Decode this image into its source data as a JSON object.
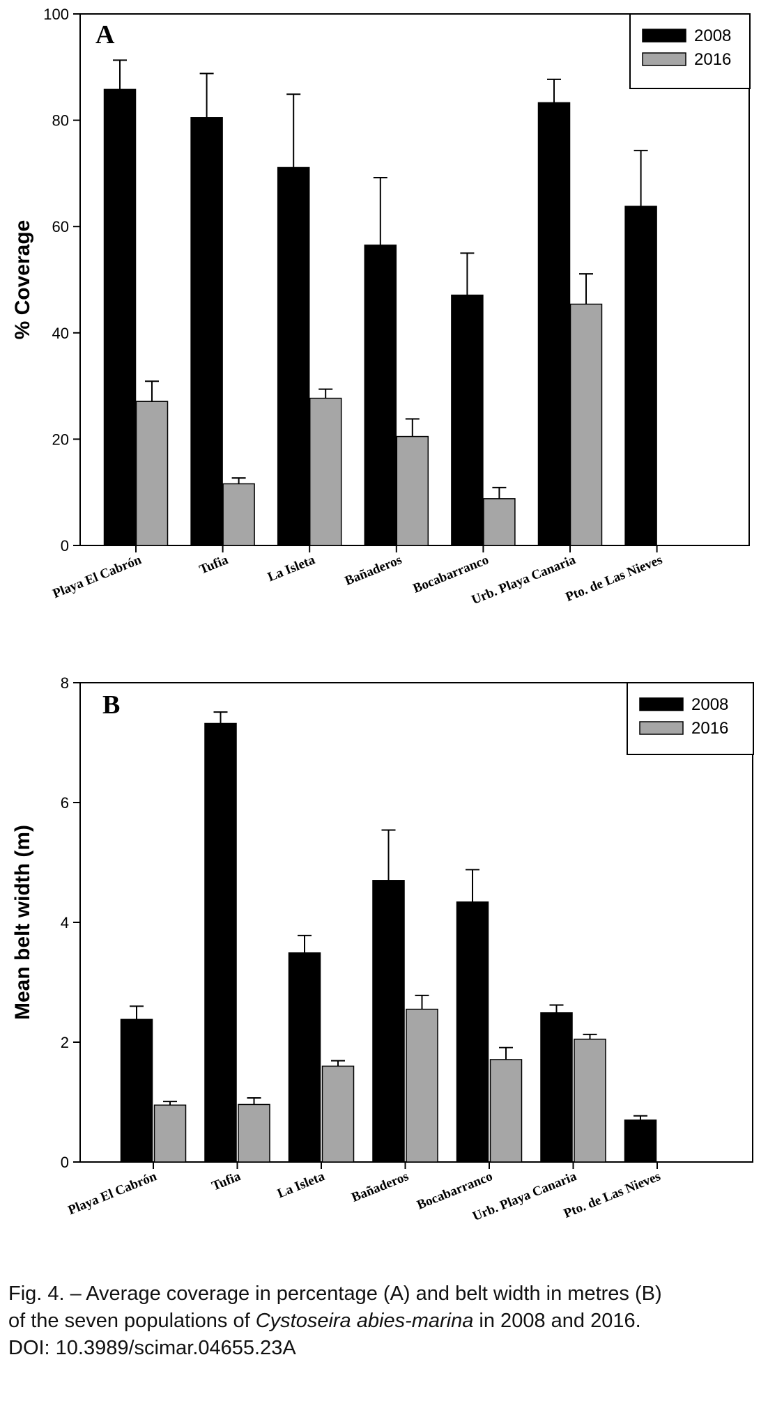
{
  "caption": {
    "line1": "Fig. 4. – Average coverage in percentage (A) and belt width in metres (B)",
    "line2_pre": "of the seven populations of ",
    "line2_species": "Cystoseira abies-marina",
    "line2_post": " in 2008 and 2016.",
    "line3": "DOI: 10.3989/scimar.04655.23A"
  },
  "colors": {
    "series_2008": "#000000",
    "series_2016": "#a6a6a6"
  },
  "chart_data": [
    {
      "type": "bar",
      "panel_label": "A",
      "ylabel": "% Coverage",
      "xlabel": "",
      "ylim": [
        0,
        100
      ],
      "yticks": [
        "0",
        "20",
        "40",
        "60",
        "80",
        "100"
      ],
      "legend_position": "top-right",
      "categories": [
        "Playa El Cabrón",
        "Tufia",
        "La Isleta",
        "Bañaderos",
        "Bocabarranco",
        "Urb. Playa Canaria",
        "Pto. de Las Nieves"
      ],
      "series": [
        {
          "name": "2008",
          "values": [
            85.8,
            80.5,
            71.1,
            56.5,
            47.1,
            83.3,
            63.8
          ],
          "errors": [
            5.5,
            8.3,
            13.8,
            12.7,
            7.9,
            4.4,
            10.5
          ]
        },
        {
          "name": "2016",
          "values": [
            27.1,
            11.6,
            27.7,
            20.5,
            8.8,
            45.4,
            null
          ],
          "errors": [
            3.8,
            1.1,
            1.7,
            3.3,
            2.1,
            5.7,
            null
          ]
        }
      ]
    },
    {
      "type": "bar",
      "panel_label": "B",
      "ylabel": "Mean belt width (m)",
      "xlabel": "",
      "ylim": [
        0,
        8
      ],
      "yticks": [
        "0",
        "2",
        "4",
        "6",
        "8"
      ],
      "legend_position": "top-right",
      "categories": [
        "Playa El Cabrón",
        "Tufia",
        "La Isleta",
        "Bañaderos",
        "Bocabarranco",
        "Urb. Playa Canaria",
        "Pto. de Las Nieves"
      ],
      "series": [
        {
          "name": "2008",
          "values": [
            2.38,
            7.32,
            3.49,
            4.7,
            4.34,
            2.49,
            0.7
          ],
          "errors": [
            0.22,
            0.19,
            0.29,
            0.84,
            0.54,
            0.13,
            0.07
          ]
        },
        {
          "name": "2016",
          "values": [
            0.95,
            0.96,
            1.6,
            2.55,
            1.71,
            2.05,
            null
          ],
          "errors": [
            0.06,
            0.11,
            0.09,
            0.23,
            0.2,
            0.08,
            null
          ]
        }
      ]
    }
  ]
}
